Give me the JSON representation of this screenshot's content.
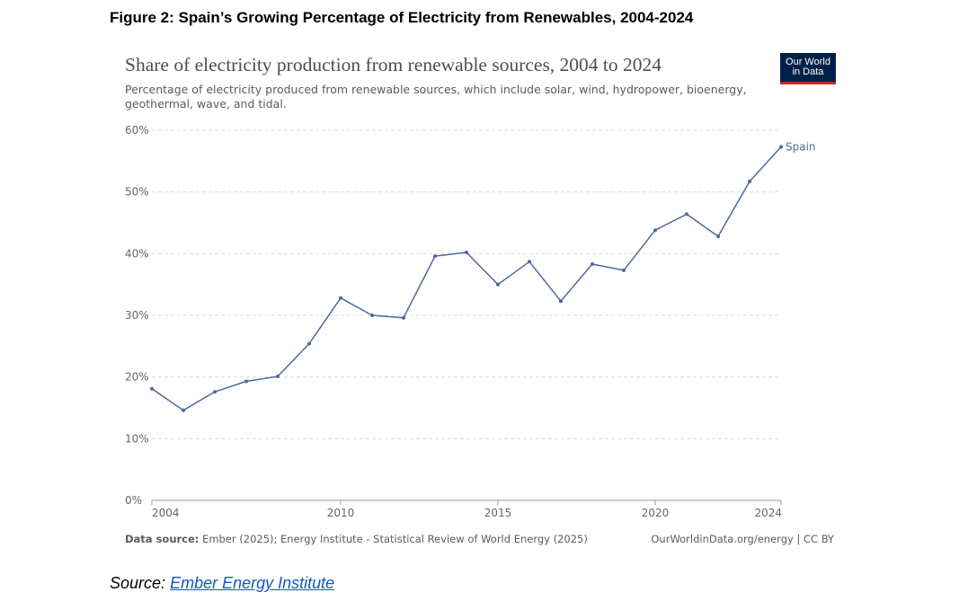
{
  "figure_caption": "Figure 2: Spain’s Growing Percentage of Electricity from Renewables, 2004-2024",
  "logo": {
    "line1": "Our World",
    "line2": "in Data"
  },
  "footer": {
    "source_label": "Data source:",
    "source_text": "Ember (2025); Energy Institute - Statistical Review of World Energy (2025)",
    "attribution": "OurWorldinData.org/energy | CC BY"
  },
  "source_line": {
    "label": "Source:",
    "link_text": "Ember Energy Institute"
  },
  "colors": {
    "series": "#4c6a9c",
    "grid": "#dddddd",
    "axis": "#999999",
    "text": "#666666"
  },
  "chart_data": {
    "type": "line",
    "title": "Share of electricity production from renewable sources, 2004 to 2024",
    "subtitle": "Percentage of electricity produced from renewable sources, which include solar, wind, hydropower, bioenergy, geothermal, wave, and tidal.",
    "xlabel": "",
    "ylabel": "",
    "xlim": [
      2004,
      2024
    ],
    "ylim": [
      0,
      60
    ],
    "x_ticks": [
      2004,
      2010,
      2015,
      2020,
      2024
    ],
    "y_ticks": [
      0,
      10,
      20,
      30,
      40,
      50,
      60
    ],
    "y_tick_labels": [
      "0%",
      "10%",
      "20%",
      "30%",
      "40%",
      "50%",
      "60%"
    ],
    "grid": "horizontal-dashed",
    "legend": "end-of-line-label",
    "series": [
      {
        "name": "Spain",
        "x": [
          2004,
          2005,
          2006,
          2007,
          2008,
          2009,
          2010,
          2011,
          2012,
          2013,
          2014,
          2015,
          2016,
          2017,
          2018,
          2019,
          2020,
          2021,
          2022,
          2023,
          2024
        ],
        "values": [
          18.1,
          14.6,
          17.6,
          19.3,
          20.1,
          25.4,
          32.8,
          30.0,
          29.6,
          39.6,
          40.2,
          35.0,
          38.7,
          32.3,
          38.3,
          37.3,
          43.8,
          46.4,
          42.8,
          51.7,
          57.3
        ]
      }
    ]
  }
}
